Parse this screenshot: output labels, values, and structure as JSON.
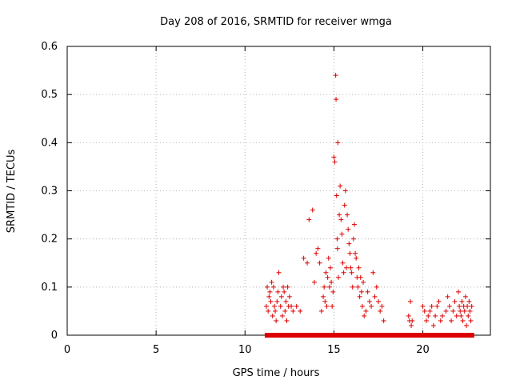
{
  "chart_data": {
    "type": "scatter",
    "title": "Day 208 of 2016, SRMTID for receiver wmga",
    "xlabel": "GPS time / hours",
    "ylabel": "SRMTID / TECUs",
    "xlim": [
      0,
      23.8
    ],
    "ylim": [
      0,
      0.6
    ],
    "xticks": [
      0,
      5,
      10,
      15,
      20
    ],
    "yticks": [
      0,
      0.1,
      0.2,
      0.3,
      0.4,
      0.5,
      0.6
    ],
    "xtick_labels": [
      "0",
      "5",
      "10",
      "15",
      "20"
    ],
    "ytick_labels": [
      "0",
      "0.1",
      "0.2",
      "0.3",
      "0.4",
      "0.5",
      "0.6"
    ],
    "grid": true,
    "colors": {
      "marker": "#dd0000"
    },
    "series": [
      {
        "name": "SRMTID",
        "marker": "plus",
        "x": [
          11.2,
          11.25,
          11.3,
          11.35,
          11.4,
          11.45,
          11.5,
          11.55,
          11.6,
          11.65,
          11.7,
          11.75,
          11.8,
          11.85,
          11.9,
          12.0,
          12.05,
          12.1,
          12.15,
          12.2,
          12.25,
          12.3,
          12.35,
          12.4,
          12.45,
          12.5,
          12.6,
          12.7,
          12.9,
          13.1,
          13.3,
          13.5,
          13.6,
          13.8,
          13.9,
          14.0,
          14.1,
          14.2,
          14.3,
          14.4,
          14.45,
          14.5,
          14.55,
          14.6,
          14.65,
          14.7,
          14.75,
          14.8,
          14.85,
          14.9,
          14.95,
          15.0,
          15.05,
          15.1,
          15.12,
          15.15,
          15.18,
          15.2,
          15.22,
          15.25,
          15.3,
          15.35,
          15.4,
          15.45,
          15.5,
          15.55,
          15.6,
          15.65,
          15.7,
          15.75,
          15.8,
          15.85,
          15.9,
          15.95,
          16.0,
          16.05,
          16.1,
          16.15,
          16.2,
          16.25,
          16.3,
          16.35,
          16.4,
          16.45,
          16.5,
          16.55,
          16.6,
          16.65,
          16.7,
          16.8,
          16.9,
          17.0,
          17.1,
          17.2,
          17.3,
          17.4,
          17.5,
          17.6,
          17.7,
          17.8,
          19.2,
          19.25,
          19.3,
          19.35,
          19.4,
          20.0,
          20.1,
          20.2,
          20.3,
          20.4,
          20.5,
          20.6,
          20.7,
          20.8,
          20.9,
          21.0,
          21.1,
          21.3,
          21.4,
          21.5,
          21.6,
          21.7,
          21.8,
          21.9,
          22.0,
          22.05,
          22.1,
          22.15,
          22.2,
          22.25,
          22.3,
          22.35,
          22.4,
          22.45,
          22.5,
          22.55,
          22.6,
          22.65,
          22.7,
          22.75
        ],
        "y": [
          0.06,
          0.1,
          0.05,
          0.08,
          0.09,
          0.07,
          0.11,
          0.04,
          0.1,
          0.06,
          0.05,
          0.03,
          0.07,
          0.09,
          0.13,
          0.06,
          0.08,
          0.04,
          0.1,
          0.09,
          0.05,
          0.07,
          0.03,
          0.1,
          0.06,
          0.08,
          0.06,
          0.05,
          0.06,
          0.05,
          0.16,
          0.15,
          0.24,
          0.26,
          0.11,
          0.17,
          0.18,
          0.15,
          0.05,
          0.08,
          0.1,
          0.07,
          0.13,
          0.06,
          0.12,
          0.16,
          0.1,
          0.14,
          0.11,
          0.06,
          0.09,
          0.37,
          0.36,
          0.54,
          0.49,
          0.29,
          0.2,
          0.18,
          0.4,
          0.12,
          0.25,
          0.31,
          0.24,
          0.21,
          0.15,
          0.13,
          0.27,
          0.3,
          0.14,
          0.25,
          0.22,
          0.19,
          0.17,
          0.14,
          0.13,
          0.1,
          0.2,
          0.23,
          0.17,
          0.16,
          0.12,
          0.1,
          0.14,
          0.08,
          0.12,
          0.09,
          0.06,
          0.11,
          0.04,
          0.05,
          0.09,
          0.07,
          0.06,
          0.13,
          0.08,
          0.1,
          0.07,
          0.05,
          0.06,
          0.03,
          0.04,
          0.03,
          0.07,
          0.02,
          0.03,
          0.06,
          0.05,
          0.03,
          0.04,
          0.05,
          0.06,
          0.02,
          0.04,
          0.06,
          0.07,
          0.03,
          0.04,
          0.05,
          0.08,
          0.06,
          0.03,
          0.05,
          0.07,
          0.04,
          0.09,
          0.06,
          0.05,
          0.04,
          0.07,
          0.03,
          0.06,
          0.05,
          0.08,
          0.02,
          0.06,
          0.04,
          0.07,
          0.05,
          0.03,
          0.06
        ]
      },
      {
        "name": "zero baseline",
        "marker": "square",
        "x_range": [
          11.2,
          22.8
        ],
        "y": 0
      }
    ]
  }
}
